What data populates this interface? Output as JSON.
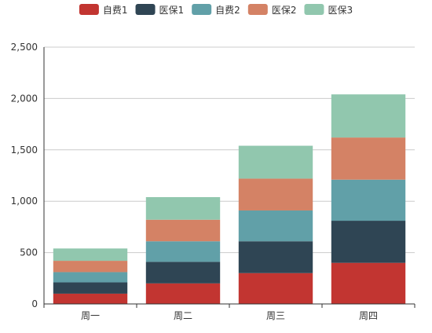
{
  "chart_data": {
    "type": "bar",
    "stacked": true,
    "categories": [
      "周一",
      "周二",
      "周三",
      "周四"
    ],
    "series": [
      {
        "name": "自费1",
        "color": "#c23531",
        "values": [
          100,
          200,
          300,
          400
        ]
      },
      {
        "name": "医保1",
        "color": "#2f4554",
        "values": [
          110,
          210,
          310,
          410
        ]
      },
      {
        "name": "自费2",
        "color": "#61a0a8",
        "values": [
          100,
          200,
          300,
          400
        ]
      },
      {
        "name": "医保2",
        "color": "#d48265",
        "values": [
          110,
          210,
          310,
          410
        ]
      },
      {
        "name": "医保3",
        "color": "#91c7ae",
        "values": [
          120,
          220,
          320,
          420
        ]
      }
    ],
    "ylim": [
      0,
      2500
    ],
    "yticks": [
      0,
      500,
      1000,
      1500,
      2000,
      2500
    ],
    "ytick_labels": [
      "0",
      "500",
      "1,000",
      "1,500",
      "2,000",
      "2,500"
    ],
    "grid": true,
    "legend_position": "top-center"
  }
}
